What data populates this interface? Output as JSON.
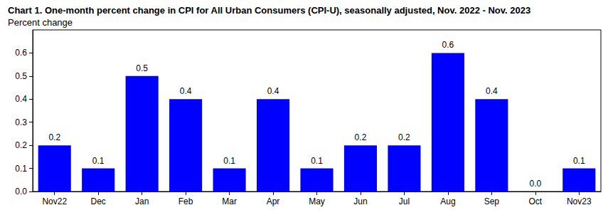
{
  "chart_data": {
    "type": "bar",
    "title": "Chart 1. One-month percent change in CPI for All Urban Consumers (CPI-U), seasonally adjusted, Nov. 2022 - Nov. 2023",
    "subtitle": "Percent change",
    "categories": [
      "Nov22",
      "Dec",
      "Jan",
      "Feb",
      "Mar",
      "Apr",
      "May",
      "Jun",
      "Jul",
      "Aug",
      "Sep",
      "Oct",
      "Nov23"
    ],
    "values": [
      0.2,
      0.1,
      0.5,
      0.4,
      0.1,
      0.4,
      0.1,
      0.2,
      0.2,
      0.6,
      0.4,
      0.0,
      0.1
    ],
    "value_labels": [
      "0.2",
      "0.1",
      "0.5",
      "0.4",
      "0.1",
      "0.4",
      "0.1",
      "0.2",
      "0.2",
      "0.6",
      "0.4",
      "0.0",
      "0.1"
    ],
    "color": "#0000ff",
    "ylim": [
      0,
      0.7
    ],
    "yticks": [
      {
        "value": 0,
        "label": "0.0"
      },
      0.1,
      0.2,
      0.3,
      0.4,
      0.5,
      0.6
    ],
    "grid": false,
    "data_labels": true
  }
}
